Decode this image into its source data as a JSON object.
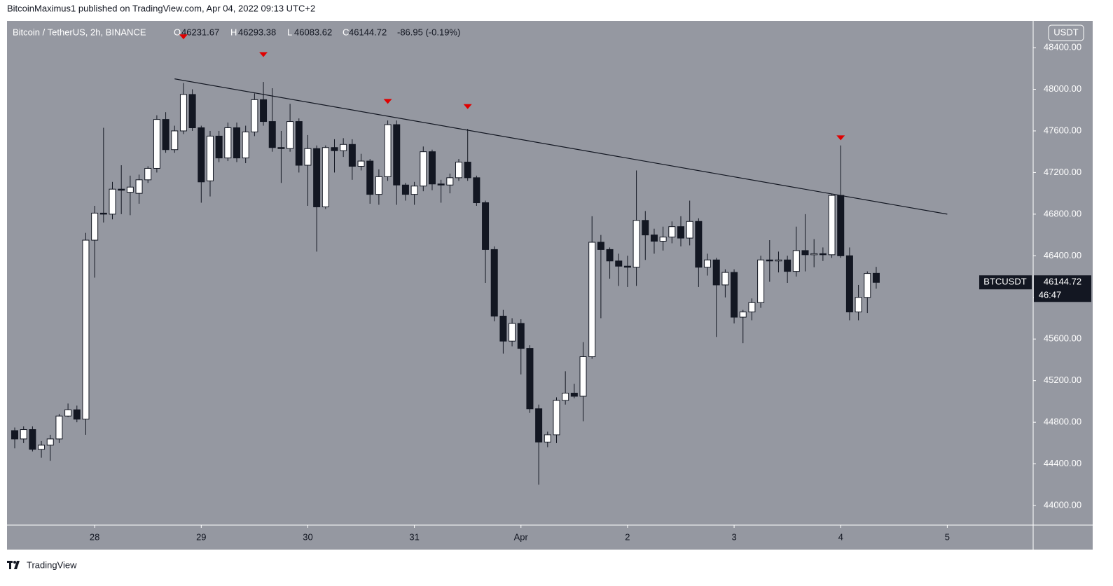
{
  "header": {
    "publisher": "BitcoinMaximus1 published on TradingView.com, Apr 04, 2022 09:13 UTC+2"
  },
  "chart_data": {
    "type": "candlestick",
    "title": "Bitcoin / TetherUS, 2h, BINANCE",
    "ohlc_labels": [
      "O",
      "H",
      "L",
      "C"
    ],
    "change": "-86.95 (-0.19%)",
    "currency": "USDT",
    "symbol": "BTCUSDT",
    "countdown": "46:47",
    "up_color": "#ffffff",
    "down_color": "#131722",
    "background": "#9598a1",
    "open": [
      44720,
      44640,
      44730,
      44540,
      44580,
      44640,
      44860,
      44920,
      44830,
      46550,
      46810,
      46800,
      47040,
      47010,
      47000,
      47130,
      47240,
      47710,
      47420,
      47600,
      47950,
      47630,
      47120,
      47550,
      47340,
      47630,
      47340,
      47590,
      47900,
      47690,
      47440,
      47430,
      47690,
      47270,
      47430,
      46870,
      47440,
      47410,
      47470,
      47260,
      47310,
      46990,
      47160,
      47660,
      47080,
      46990,
      47070,
      47400,
      47090,
      47080,
      47150,
      47300,
      47150,
      46910,
      46460,
      45820,
      45580,
      45750,
      45510,
      44930,
      44610,
      44680,
      45010,
      45080,
      45050,
      45430,
      46530,
      46460,
      46350,
      46300,
      46290,
      46740,
      46600,
      46540,
      46580,
      46680,
      46570,
      46730,
      46290,
      46360,
      46120,
      46240,
      45810,
      45860,
      45950,
      46360,
      46350,
      46360,
      46250,
      46450,
      46410,
      46420,
      46410,
      46980,
      46400,
      45860,
      46000,
      46231.67
    ],
    "high": [
      44750,
      44760,
      44760,
      44620,
      44680,
      44880,
      44980,
      44960,
      46620,
      46880,
      47630,
      47110,
      47270,
      47170,
      47180,
      47260,
      47750,
      47780,
      47650,
      48060,
      48000,
      47650,
      47600,
      47600,
      47680,
      47680,
      47650,
      47960,
      48070,
      48010,
      47600,
      47860,
      47720,
      47560,
      47460,
      47460,
      47520,
      47530,
      47520,
      47380,
      47330,
      47230,
      47700,
      47700,
      47100,
      47110,
      47450,
      47420,
      47130,
      47190,
      47330,
      47620,
      47170,
      46930,
      46490,
      45880,
      45800,
      45790,
      45540,
      44970,
      44710,
      45040,
      45290,
      45170,
      45570,
      46780,
      46600,
      46480,
      46420,
      46400,
      47220,
      46830,
      46660,
      46680,
      46730,
      46780,
      46930,
      46760,
      46420,
      46380,
      46270,
      46270,
      45880,
      45990,
      46400,
      46550,
      46440,
      46400,
      46680,
      46800,
      46560,
      46480,
      46990,
      47460,
      46480,
      46120,
      46250,
      46293.38
    ],
    "low": [
      44550,
      44600,
      44520,
      44460,
      44430,
      44600,
      44850,
      44800,
      44680,
      46190,
      46720,
      46750,
      46800,
      46790,
      46900,
      47100,
      47200,
      47390,
      47390,
      47570,
      47600,
      46910,
      46970,
      47300,
      47310,
      47300,
      47290,
      47550,
      47650,
      47400,
      47100,
      47400,
      47200,
      46880,
      46440,
      46850,
      47200,
      47350,
      47130,
      47220,
      46900,
      46890,
      47120,
      46890,
      46930,
      46890,
      47020,
      47030,
      46910,
      47000,
      47120,
      47120,
      46880,
      46140,
      45770,
      45460,
      45530,
      45260,
      44890,
      44200,
      44560,
      44600,
      44970,
      45030,
      44810,
      45410,
      45800,
      46180,
      46110,
      46100,
      46110,
      46360,
      46420,
      46450,
      46520,
      46490,
      46500,
      46100,
      46210,
      45620,
      46000,
      45750,
      45560,
      45780,
      45900,
      46150,
      46240,
      46140,
      46200,
      46250,
      46290,
      46350,
      46380,
      46380,
      45780,
      45780,
      45850,
      46083.62
    ],
    "close": [
      44640,
      44730,
      44540,
      44580,
      44640,
      44860,
      44920,
      44830,
      46550,
      46810,
      46800,
      47040,
      47030,
      47060,
      47130,
      47240,
      47710,
      47420,
      47600,
      47950,
      47630,
      47110,
      47550,
      47340,
      47630,
      47340,
      47590,
      47900,
      47690,
      47440,
      47430,
      47690,
      47270,
      47430,
      46870,
      47440,
      47410,
      47470,
      47260,
      47310,
      46990,
      47160,
      47660,
      47080,
      46990,
      47070,
      47400,
      47090,
      47080,
      47150,
      47300,
      47150,
      46910,
      46460,
      45820,
      45580,
      45750,
      45510,
      44930,
      44610,
      44680,
      45010,
      45080,
      45050,
      45430,
      46530,
      46460,
      46350,
      46300,
      46290,
      46740,
      46600,
      46540,
      46580,
      46680,
      46570,
      46730,
      46290,
      46360,
      46120,
      46240,
      45810,
      45860,
      45950,
      46360,
      46350,
      46360,
      46250,
      46450,
      46410,
      46420,
      46410,
      46980,
      46400,
      45860,
      46000,
      46230,
      46144.72
    ],
    "trendline": {
      "x": [
        18,
        105
      ],
      "y": [
        48100,
        46800
      ],
      "color": "#131722"
    },
    "markers": {
      "x": [
        19,
        28,
        42,
        51,
        93
      ],
      "y": [
        48500,
        48330,
        47880,
        47830,
        47530
      ],
      "color": "#e00000"
    },
    "xlim": [
      -0.87,
      114.67
    ],
    "ylim": [
      43812,
      48656
    ],
    "xticks": [
      {
        "value": 9,
        "label": "28"
      },
      {
        "value": 21,
        "label": "29"
      },
      {
        "value": 33,
        "label": "30"
      },
      {
        "value": 45,
        "label": "31"
      },
      {
        "value": 57,
        "label": "Apr"
      },
      {
        "value": 69,
        "label": "2"
      },
      {
        "value": 81,
        "label": "3"
      },
      {
        "value": 93,
        "label": "4"
      },
      {
        "value": 105,
        "label": "5"
      }
    ],
    "yticks": [
      {
        "value": 44000,
        "label": "44000.00"
      },
      {
        "value": 44400,
        "label": "44400.00"
      },
      {
        "value": 44800,
        "label": "44800.00"
      },
      {
        "value": 45200,
        "label": "45200.00"
      },
      {
        "value": 45600,
        "label": "45600.00"
      },
      {
        "value": 46000,
        "label": "46000.00"
      },
      {
        "value": 46400,
        "label": "46400.00"
      },
      {
        "value": 46800,
        "label": "46800.00"
      },
      {
        "value": 47200,
        "label": "47200.00"
      },
      {
        "value": 47600,
        "label": "47600.00"
      },
      {
        "value": 48000,
        "label": "48000.00"
      },
      {
        "value": 48400,
        "label": "48400.00"
      }
    ],
    "grid": false
  },
  "footer": {
    "brand": "TradingView"
  }
}
